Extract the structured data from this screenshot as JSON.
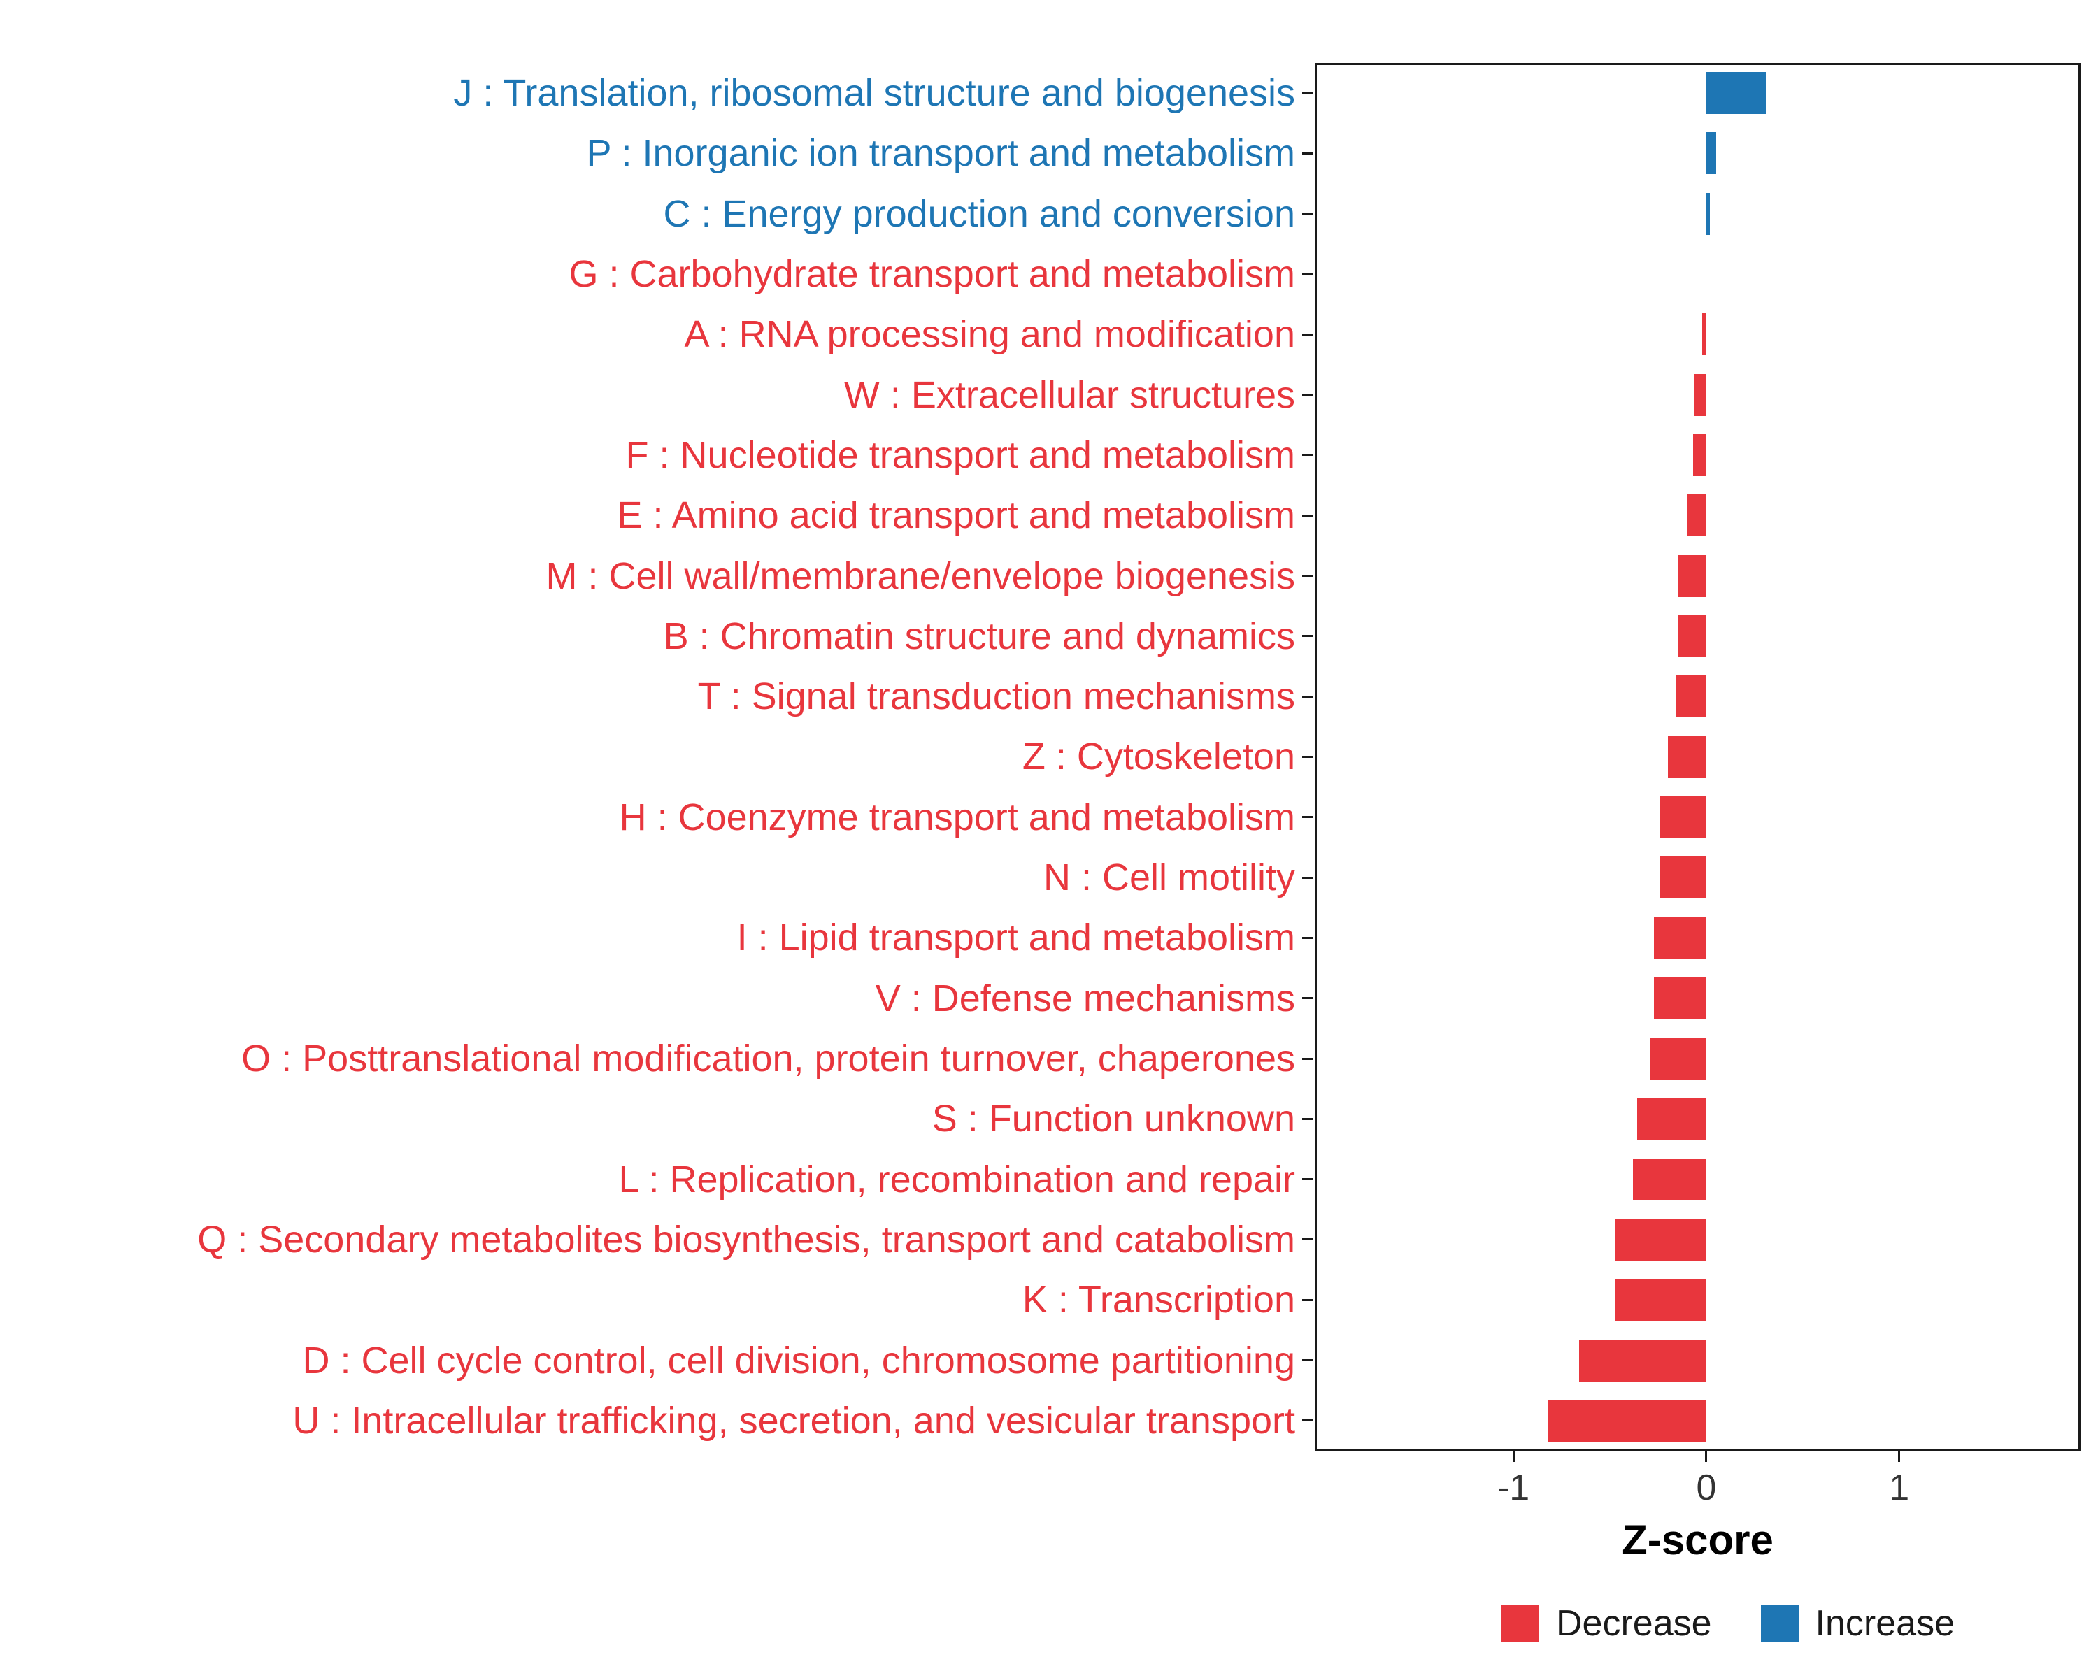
{
  "chart_data": {
    "type": "bar",
    "orientation": "horizontal",
    "title": "",
    "xlabel": "Z-score",
    "xlim": [
      -2.03,
      1.94
    ],
    "x_ticks": [
      -1,
      0,
      1
    ],
    "x_tick_labels": [
      "-1",
      "0",
      "1"
    ],
    "grid": false,
    "legend_position": "bottom-right",
    "colors": {
      "decrease": "#E8363D",
      "increase": "#1E76B4"
    },
    "legend": [
      {
        "label": "Decrease",
        "key": "decrease"
      },
      {
        "label": "Increase",
        "key": "increase"
      }
    ],
    "categories": [
      {
        "label": "J : Translation, ribosomal structure and biogenesis",
        "value": 0.31,
        "direction": "increase"
      },
      {
        "label": "P : Inorganic ion transport and metabolism",
        "value": 0.05,
        "direction": "increase"
      },
      {
        "label": "C : Energy production and conversion",
        "value": 0.02,
        "direction": "increase"
      },
      {
        "label": "G : Carbohydrate transport and metabolism",
        "value": -0.005,
        "direction": "decrease"
      },
      {
        "label": "A : RNA processing and modification",
        "value": -0.02,
        "direction": "decrease"
      },
      {
        "label": "W : Extracellular structures",
        "value": -0.06,
        "direction": "decrease"
      },
      {
        "label": "F : Nucleotide transport and metabolism",
        "value": -0.07,
        "direction": "decrease"
      },
      {
        "label": "E : Amino acid transport and metabolism",
        "value": -0.1,
        "direction": "decrease"
      },
      {
        "label": "M : Cell wall/membrane/envelope biogenesis",
        "value": -0.15,
        "direction": "decrease"
      },
      {
        "label": "B : Chromatin structure and dynamics",
        "value": -0.15,
        "direction": "decrease"
      },
      {
        "label": "T : Signal transduction mechanisms",
        "value": -0.16,
        "direction": "decrease"
      },
      {
        "label": "Z : Cytoskeleton",
        "value": -0.2,
        "direction": "decrease"
      },
      {
        "label": "H : Coenzyme transport and metabolism",
        "value": -0.24,
        "direction": "decrease"
      },
      {
        "label": "N : Cell motility",
        "value": -0.24,
        "direction": "decrease"
      },
      {
        "label": "I : Lipid transport and metabolism",
        "value": -0.27,
        "direction": "decrease"
      },
      {
        "label": "V : Defense mechanisms",
        "value": -0.27,
        "direction": "decrease"
      },
      {
        "label": "O : Posttranslational modification, protein turnover, chaperones",
        "value": -0.29,
        "direction": "decrease"
      },
      {
        "label": "S : Function unknown",
        "value": -0.36,
        "direction": "decrease"
      },
      {
        "label": "L : Replication, recombination and repair",
        "value": -0.38,
        "direction": "decrease"
      },
      {
        "label": "Q : Secondary metabolites biosynthesis, transport and catabolism",
        "value": -0.47,
        "direction": "decrease"
      },
      {
        "label": "K : Transcription",
        "value": -0.47,
        "direction": "decrease"
      },
      {
        "label": "D : Cell cycle control, cell division, chromosome partitioning",
        "value": -0.66,
        "direction": "decrease"
      },
      {
        "label": "U : Intracellular trafficking, secretion, and vesicular transport",
        "value": -0.82,
        "direction": "decrease"
      }
    ]
  }
}
